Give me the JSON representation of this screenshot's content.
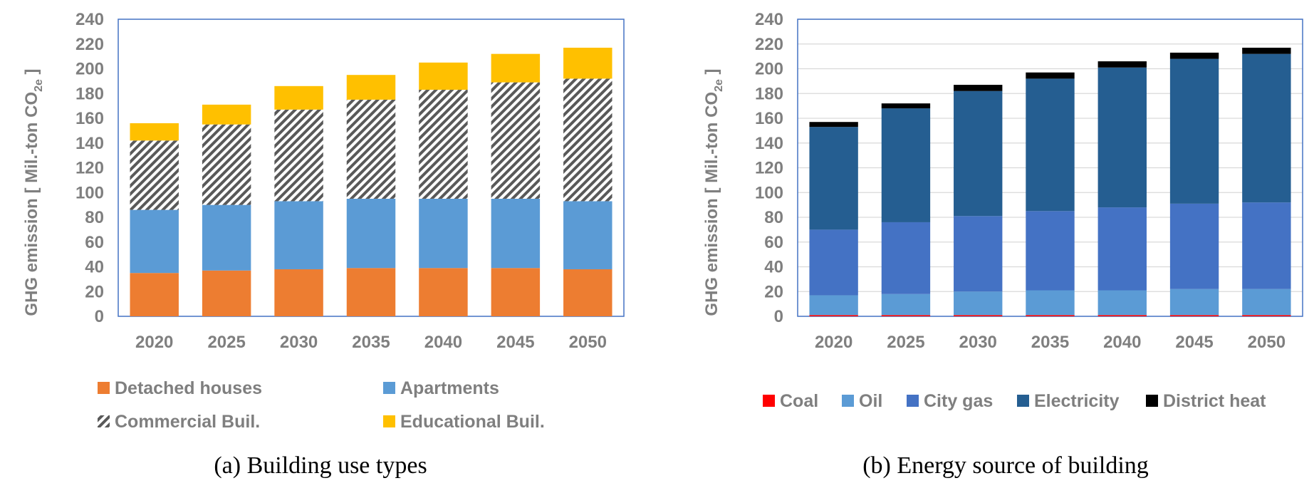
{
  "chart_data": [
    {
      "type": "bar",
      "stacked": true,
      "caption": "(a) Building use types",
      "ylabel_main": "GHG emission [ Mil.-ton CO",
      "ylabel_sub": "2e",
      "ylabel_end": " ]",
      "ylim": [
        0,
        240
      ],
      "yticks": [
        "0",
        "20",
        "40",
        "60",
        "80",
        "100",
        "120",
        "140",
        "160",
        "180",
        "200",
        "220",
        "240"
      ],
      "grid": false,
      "legend_position": "bottom",
      "categories": [
        "2020",
        "2025",
        "2030",
        "2035",
        "2040",
        "2045",
        "2050"
      ],
      "series": [
        {
          "name": "Detached houses",
          "color": "#ed7d31",
          "values": [
            35,
            37,
            38,
            39,
            39,
            39,
            38
          ]
        },
        {
          "name": "Apartments",
          "color": "#5b9bd5",
          "values": [
            51,
            53,
            55,
            56,
            56,
            56,
            55
          ]
        },
        {
          "name": "Commercial Buil.",
          "color": "pattern-hatch",
          "values": [
            56,
            65,
            74,
            80,
            88,
            94,
            99
          ]
        },
        {
          "name": "Educational Buil.",
          "color": "#ffc000",
          "values": [
            14,
            16,
            19,
            20,
            22,
            23,
            25
          ]
        }
      ]
    },
    {
      "type": "bar",
      "stacked": true,
      "caption": "(b) Energy source of building",
      "ylabel_main": "GHG emission [ Mil.-ton CO",
      "ylabel_sub": "2e",
      "ylabel_end": " ]",
      "ylim": [
        0,
        240
      ],
      "yticks": [
        "0",
        "20",
        "40",
        "60",
        "80",
        "100",
        "120",
        "140",
        "160",
        "180",
        "200",
        "220",
        "240"
      ],
      "grid": true,
      "legend_position": "bottom",
      "categories": [
        "2020",
        "2025",
        "2030",
        "2035",
        "2040",
        "2045",
        "2050"
      ],
      "series": [
        {
          "name": "Coal",
          "color": "#ff0000",
          "values": [
            1,
            1,
            1,
            1,
            1,
            1,
            1
          ]
        },
        {
          "name": "Oil",
          "color": "#5b9bd5",
          "values": [
            16,
            17,
            19,
            20,
            20,
            21,
            21
          ]
        },
        {
          "name": "City gas",
          "color": "#4472c4",
          "values": [
            53,
            58,
            61,
            64,
            67,
            69,
            70
          ]
        },
        {
          "name": "Electricity",
          "color": "#255e91",
          "values": [
            83,
            92,
            101,
            107,
            113,
            117,
            120
          ]
        },
        {
          "name": "District heat",
          "color": "#000000",
          "values": [
            4,
            4,
            5,
            5,
            5,
            5,
            5
          ]
        }
      ]
    }
  ]
}
